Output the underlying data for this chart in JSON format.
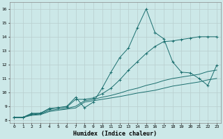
{
  "xlabel": "Humidex (Indice chaleur)",
  "x_values": [
    0,
    1,
    2,
    3,
    4,
    5,
    6,
    7,
    8,
    9,
    10,
    11,
    12,
    13,
    14,
    15,
    16,
    17,
    18,
    19,
    20,
    21,
    22,
    23
  ],
  "line_spiky": [
    8.2,
    8.2,
    8.5,
    8.5,
    8.85,
    8.9,
    9.0,
    9.65,
    8.9,
    9.3,
    10.3,
    11.45,
    12.5,
    13.2,
    14.65,
    16.0,
    14.3,
    13.85,
    12.2,
    11.45,
    11.4,
    11.0,
    10.5,
    11.95
  ],
  "line_diag": [
    8.2,
    8.2,
    8.45,
    8.5,
    8.8,
    8.9,
    8.95,
    9.5,
    9.5,
    9.6,
    9.9,
    10.3,
    10.9,
    11.6,
    12.2,
    12.8,
    13.3,
    13.65,
    13.7,
    13.8,
    13.9,
    14.0,
    14.0,
    14.0
  ],
  "line_mid": [
    8.2,
    8.2,
    8.4,
    8.45,
    8.7,
    8.8,
    8.85,
    9.0,
    9.4,
    9.5,
    9.65,
    9.78,
    9.95,
    10.15,
    10.3,
    10.5,
    10.65,
    10.85,
    11.0,
    11.1,
    11.2,
    11.3,
    11.5,
    11.6
  ],
  "line_low": [
    8.2,
    8.2,
    8.35,
    8.4,
    8.62,
    8.72,
    8.8,
    8.88,
    9.3,
    9.4,
    9.5,
    9.6,
    9.7,
    9.82,
    9.95,
    10.05,
    10.15,
    10.3,
    10.45,
    10.55,
    10.65,
    10.75,
    10.9,
    11.0
  ],
  "bg_color": "#cce8e8",
  "grid_color": "#b8cece",
  "line_color": "#1a6e6e",
  "xlim": [
    -0.5,
    23.5
  ],
  "ylim": [
    7.8,
    16.5
  ],
  "yticks": [
    8,
    9,
    10,
    11,
    12,
    13,
    14,
    15,
    16
  ],
  "xticks": [
    0,
    1,
    2,
    3,
    4,
    5,
    6,
    7,
    8,
    9,
    10,
    11,
    12,
    13,
    14,
    15,
    16,
    17,
    18,
    19,
    20,
    21,
    22,
    23
  ]
}
